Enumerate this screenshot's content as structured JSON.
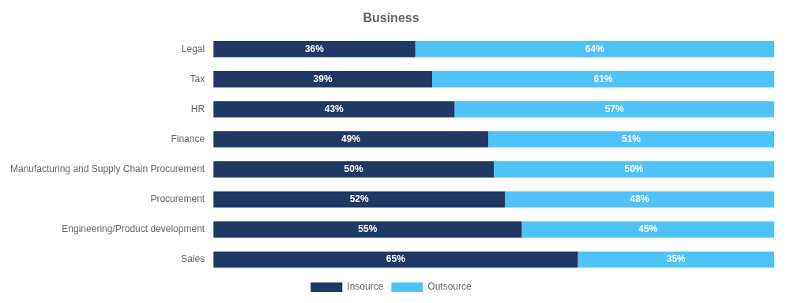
{
  "chart_data": {
    "type": "bar",
    "orientation": "horizontal",
    "stacked": true,
    "title": "Business",
    "categories": [
      "Legal",
      "Tax",
      "HR",
      "Finance",
      "Manufacturing and Supply Chain Procurement",
      "Procurement",
      "Engineering/Product development",
      "Sales"
    ],
    "series": [
      {
        "name": "Insource",
        "color": "#1f3864",
        "values": [
          36,
          39,
          43,
          49,
          50,
          52,
          55,
          65
        ],
        "value_labels": [
          "36%",
          "39%",
          "43%",
          "49%",
          "50%",
          "52%",
          "55%",
          "65%"
        ]
      },
      {
        "name": "Outsource",
        "color": "#4fc3f7",
        "values": [
          64,
          61,
          57,
          51,
          50,
          48,
          45,
          35
        ],
        "value_labels": [
          "64%",
          "61%",
          "57%",
          "51%",
          "50%",
          "48%",
          "45%",
          "35%"
        ]
      }
    ],
    "xlim": [
      0,
      100
    ],
    "grid": false,
    "legend": "bottom",
    "data_labels": true,
    "tick_labels": "y"
  }
}
